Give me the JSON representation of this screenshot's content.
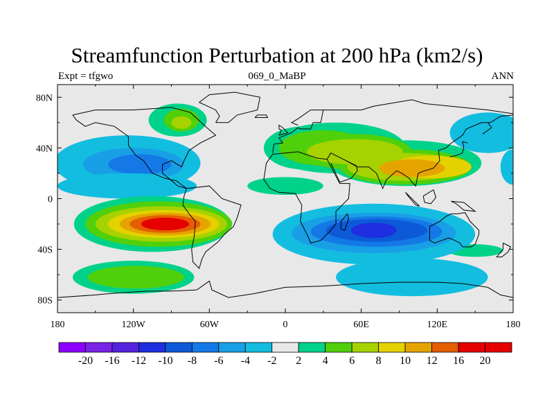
{
  "title": "Streamfunction Perturbation at 200 hPa (km2/s)",
  "subtitle_left": "Expt = tfgwo",
  "subtitle_center": "069_0_MaBP",
  "subtitle_right": "ANN",
  "chart_data": {
    "type": "heatmap",
    "title": "Streamfunction Perturbation at 200 hPa (km2/s)",
    "xlabel": "",
    "ylabel": "",
    "xlim": [
      -180,
      180
    ],
    "ylim": [
      -90,
      90
    ],
    "x_ticks": [
      {
        "value": -180,
        "label": "180"
      },
      {
        "value": -120,
        "label": "120W"
      },
      {
        "value": -60,
        "label": "60W"
      },
      {
        "value": 0,
        "label": "0"
      },
      {
        "value": 60,
        "label": "60E"
      },
      {
        "value": 120,
        "label": "120E"
      },
      {
        "value": 180,
        "label": "180"
      }
    ],
    "y_ticks": [
      {
        "value": 80,
        "label": "80N"
      },
      {
        "value": 40,
        "label": "40N"
      },
      {
        "value": 0,
        "label": "0"
      },
      {
        "value": -40,
        "label": "40S"
      },
      {
        "value": -80,
        "label": "80S"
      }
    ],
    "colorbar": {
      "levels": [
        -20,
        -16,
        -12,
        -10,
        -8,
        -6,
        -4,
        -2,
        2,
        4,
        6,
        8,
        10,
        12,
        16,
        20
      ],
      "colors": [
        "#8B00FF",
        "#7A22E6",
        "#5522DD",
        "#1E2EE0",
        "#0C5AD8",
        "#1479E6",
        "#199FE6",
        "#13BDE0",
        "#E8E8E8",
        "#00D28A",
        "#50D00A",
        "#A6D200",
        "#E4D200",
        "#E6A400",
        "#E45E00",
        "#E60000",
        "#E60000"
      ]
    },
    "features": [
      {
        "name": "North Pacific negative center",
        "lon": -120,
        "lat": 27,
        "value": -8
      },
      {
        "name": "South Pacific positive center",
        "lon": -95,
        "lat": -20,
        "value": 16
      },
      {
        "name": "North Africa / Asia positive center",
        "lon": 100,
        "lat": 25,
        "value": 10
      },
      {
        "name": "Indian Ocean negative center",
        "lon": 70,
        "lat": -25,
        "value": -12
      },
      {
        "name": "Eastern South Pacific weak positive",
        "lon": -120,
        "lat": -62,
        "value": 4
      },
      {
        "name": "Southern Ocean weak negative",
        "lon": 100,
        "lat": -60,
        "value": -4
      },
      {
        "name": "North American weak positive",
        "lon": -85,
        "lat": 60,
        "value": 6
      },
      {
        "name": "Northwest Pacific negative",
        "lon": 165,
        "lat": 52,
        "value": -4
      }
    ]
  }
}
